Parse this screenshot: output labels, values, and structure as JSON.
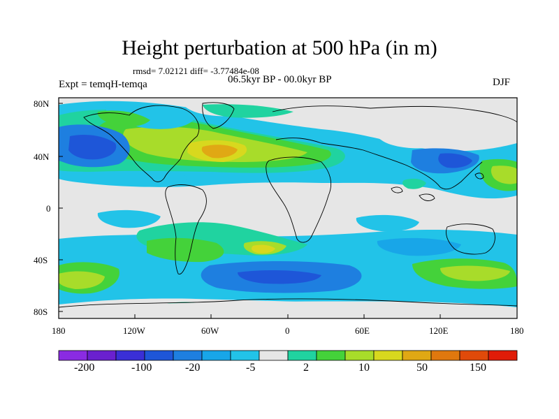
{
  "title": "Height perturbation at 500 hPa (in m)",
  "stats": "rmsd= 7.02121 diff= -3.77484e-08",
  "period": "06.5kyr BP - 00.0kyr BP",
  "expt": "Expt = temqH-temqa",
  "season": "DJF",
  "y_axis": {
    "labels": [
      "80N",
      "40N",
      "0",
      "40S",
      "80S"
    ]
  },
  "x_axis": {
    "labels": [
      "180",
      "120W",
      "60W",
      "0",
      "60E",
      "120E",
      "180"
    ]
  },
  "colorbar": {
    "labels": [
      "-200",
      "-100",
      "-20",
      "-5",
      "2",
      "10",
      "50",
      "150"
    ],
    "colors": [
      "#8a2be2",
      "#6a20cf",
      "#3a2fd6",
      "#1e56d8",
      "#1e7fe0",
      "#18a6e8",
      "#22c3e8",
      "#e6e6e6",
      "#20d3a0",
      "#44d23a",
      "#a8dc2a",
      "#d8d81e",
      "#e0a814",
      "#e0780e",
      "#e04a0a",
      "#e01c08"
    ]
  },
  "colors": {
    "background": "#e6e6e6",
    "cyan": "#22c3e8",
    "light_blue": "#18a6e8",
    "blue": "#1e7fe0",
    "dark_blue": "#1e56d8",
    "teal": "#20d3a0",
    "green": "#44d23a",
    "yellow_green": "#a8dc2a",
    "yellow": "#d8d81e",
    "orange": "#e0a814"
  }
}
